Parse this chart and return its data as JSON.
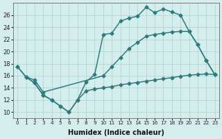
{
  "xlabel": "Humidex (Indice chaleur)",
  "x": [
    0,
    1,
    2,
    3,
    4,
    5,
    6,
    7,
    8,
    9,
    10,
    11,
    12,
    13,
    14,
    15,
    16,
    17,
    18,
    19,
    20,
    21,
    22,
    23
  ],
  "line_low": [
    17.5,
    15.8,
    14.8,
    12.8,
    12.0,
    11.0,
    10.0,
    12.0,
    13.5,
    13.8,
    14.0,
    14.2,
    14.5,
    14.7,
    14.9,
    15.1,
    15.3,
    15.5,
    15.7,
    15.9,
    16.1,
    16.2,
    16.3,
    16.2
  ],
  "line_mid": [
    null,
    15.8,
    15.3,
    13.3,
    null,
    null,
    null,
    null,
    null,
    null,
    16.0,
    17.5,
    19.0,
    20.5,
    21.5,
    22.5,
    22.8,
    23.0,
    23.2,
    23.3,
    23.3,
    21.1,
    18.5,
    16.2
  ],
  "line_high": [
    17.5,
    15.8,
    14.8,
    12.8,
    12.0,
    11.0,
    10.0,
    12.0,
    15.0,
    16.2,
    22.8,
    23.0,
    25.0,
    25.5,
    25.8,
    27.3,
    26.4,
    27.0,
    26.5,
    26.0,
    23.3,
    21.1,
    18.5,
    16.2
  ],
  "color": "#2d7d7d",
  "bg_color": "#d4eeed",
  "ylim": [
    9,
    28
  ],
  "yticks": [
    10,
    12,
    14,
    16,
    18,
    20,
    22,
    24,
    26
  ],
  "grid_color": "#aed0cc",
  "markersize": 2.5,
  "linewidth": 1.1
}
